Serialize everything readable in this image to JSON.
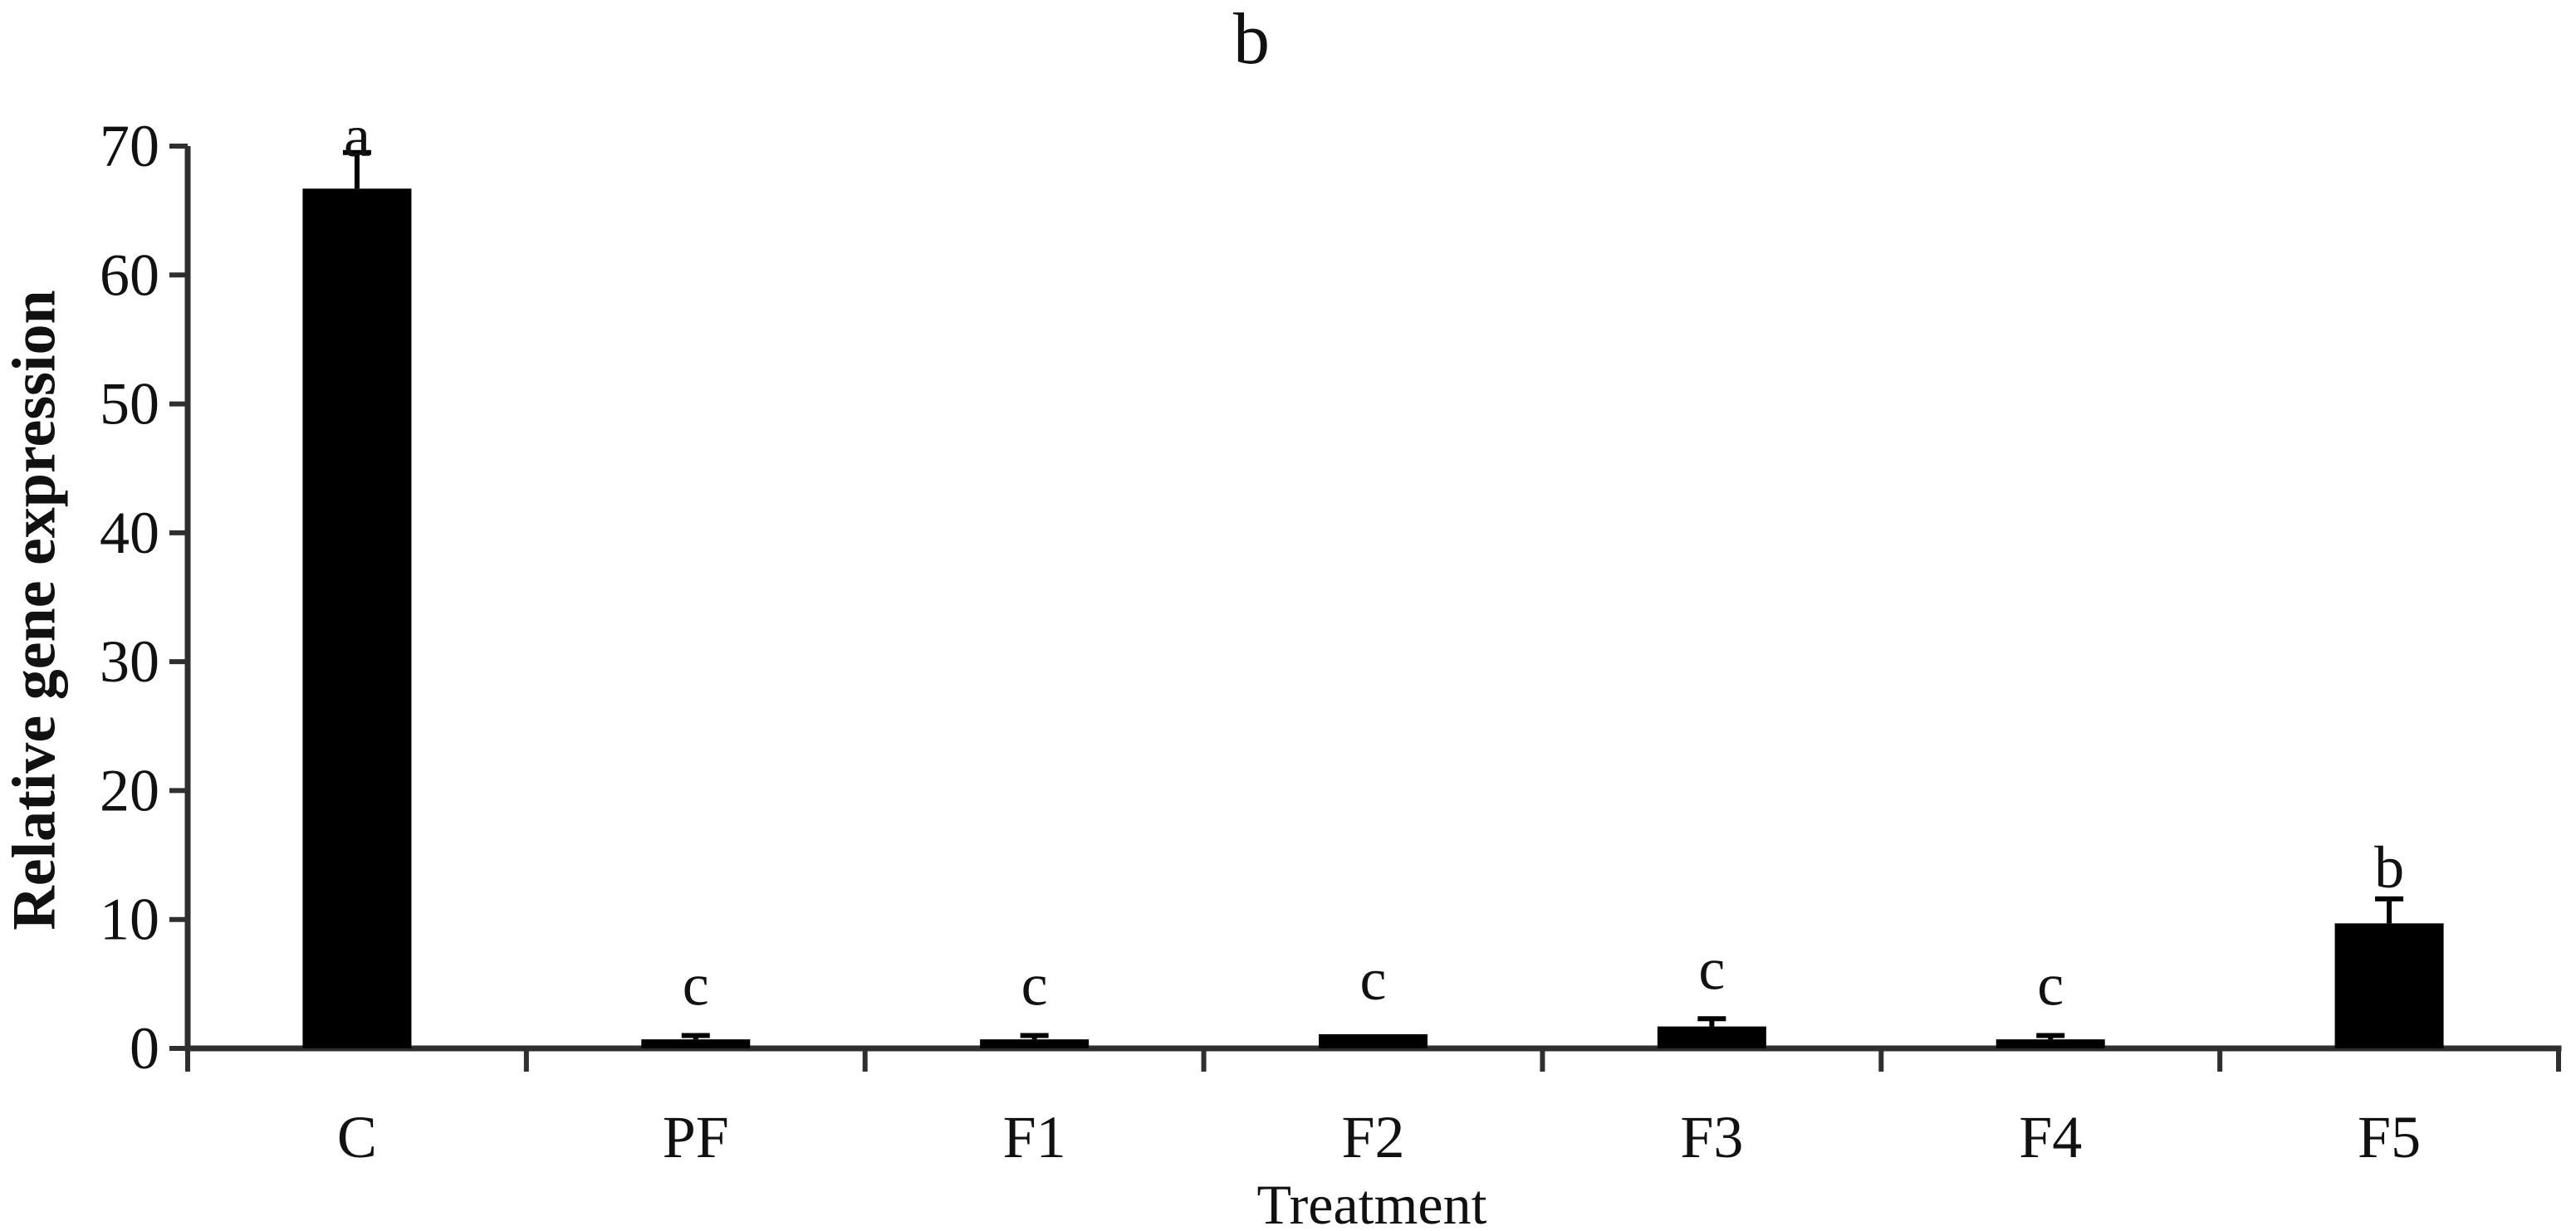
{
  "figure": {
    "panel_label": "b"
  },
  "chart_data": {
    "type": "bar",
    "title": "b",
    "xlabel": "Treatment",
    "ylabel": "Relative gene expression",
    "categories": [
      "C",
      "PF",
      "F1",
      "F2",
      "F3",
      "F4",
      "F5"
    ],
    "values": [
      66.7,
      0.7,
      0.7,
      1.1,
      1.7,
      0.7,
      9.7
    ],
    "errors_upper": [
      2.8,
      0.3,
      0.3,
      0,
      0.6,
      0.3,
      1.9
    ],
    "sig_letters": [
      "a",
      "c",
      "c",
      "c",
      "c",
      "c",
      "b"
    ],
    "ylim": [
      0,
      70
    ],
    "yticks": [
      0,
      10,
      20,
      30,
      40,
      50,
      60,
      70
    ],
    "grid": false,
    "legend": null,
    "bar_color": "#000000",
    "axis_color": "#2f2f2f",
    "text_color": "#111111"
  }
}
